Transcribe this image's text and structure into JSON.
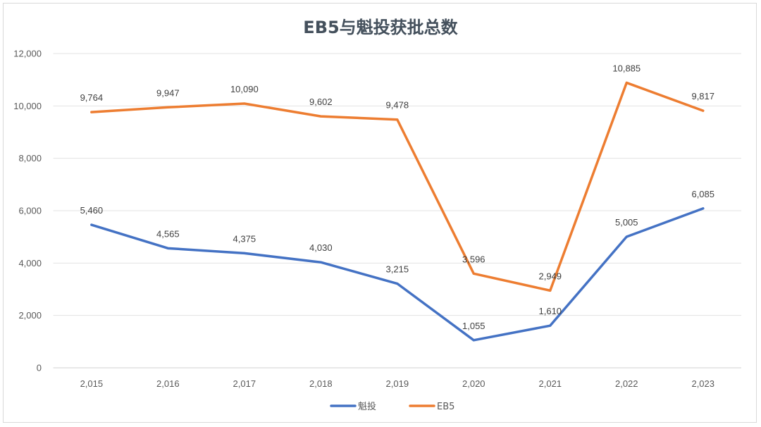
{
  "chart_data": {
    "type": "line",
    "title": "EB5与魁投获批总数",
    "categories": [
      "2,015",
      "2,016",
      "2,017",
      "2,018",
      "2,019",
      "2,020",
      "2,021",
      "2,022",
      "2,023"
    ],
    "series": [
      {
        "name": "魁投",
        "color": "#4472C4",
        "values": [
          5460,
          4565,
          4375,
          4030,
          3215,
          1055,
          1610,
          5005,
          6085
        ],
        "labels": [
          "5,460",
          "4,565",
          "4,375",
          "4,030",
          "3,215",
          "1,055",
          "1,610",
          "5,005",
          "6,085"
        ]
      },
      {
        "name": "EB5",
        "color": "#ED7D31",
        "values": [
          9764,
          9947,
          10090,
          9602,
          9478,
          3596,
          2949,
          10885,
          9817
        ],
        "labels": [
          "9,764",
          "9,947",
          "10,090",
          "9,602",
          "9,478",
          "3,596",
          "2,949",
          "10,885",
          "9,817"
        ]
      }
    ],
    "ylim": [
      0,
      12000
    ],
    "yticks": [
      "0",
      "2,000",
      "4,000",
      "6,000",
      "8,000",
      "10,000",
      "12,000"
    ],
    "grid": true,
    "legend": "bottom"
  }
}
